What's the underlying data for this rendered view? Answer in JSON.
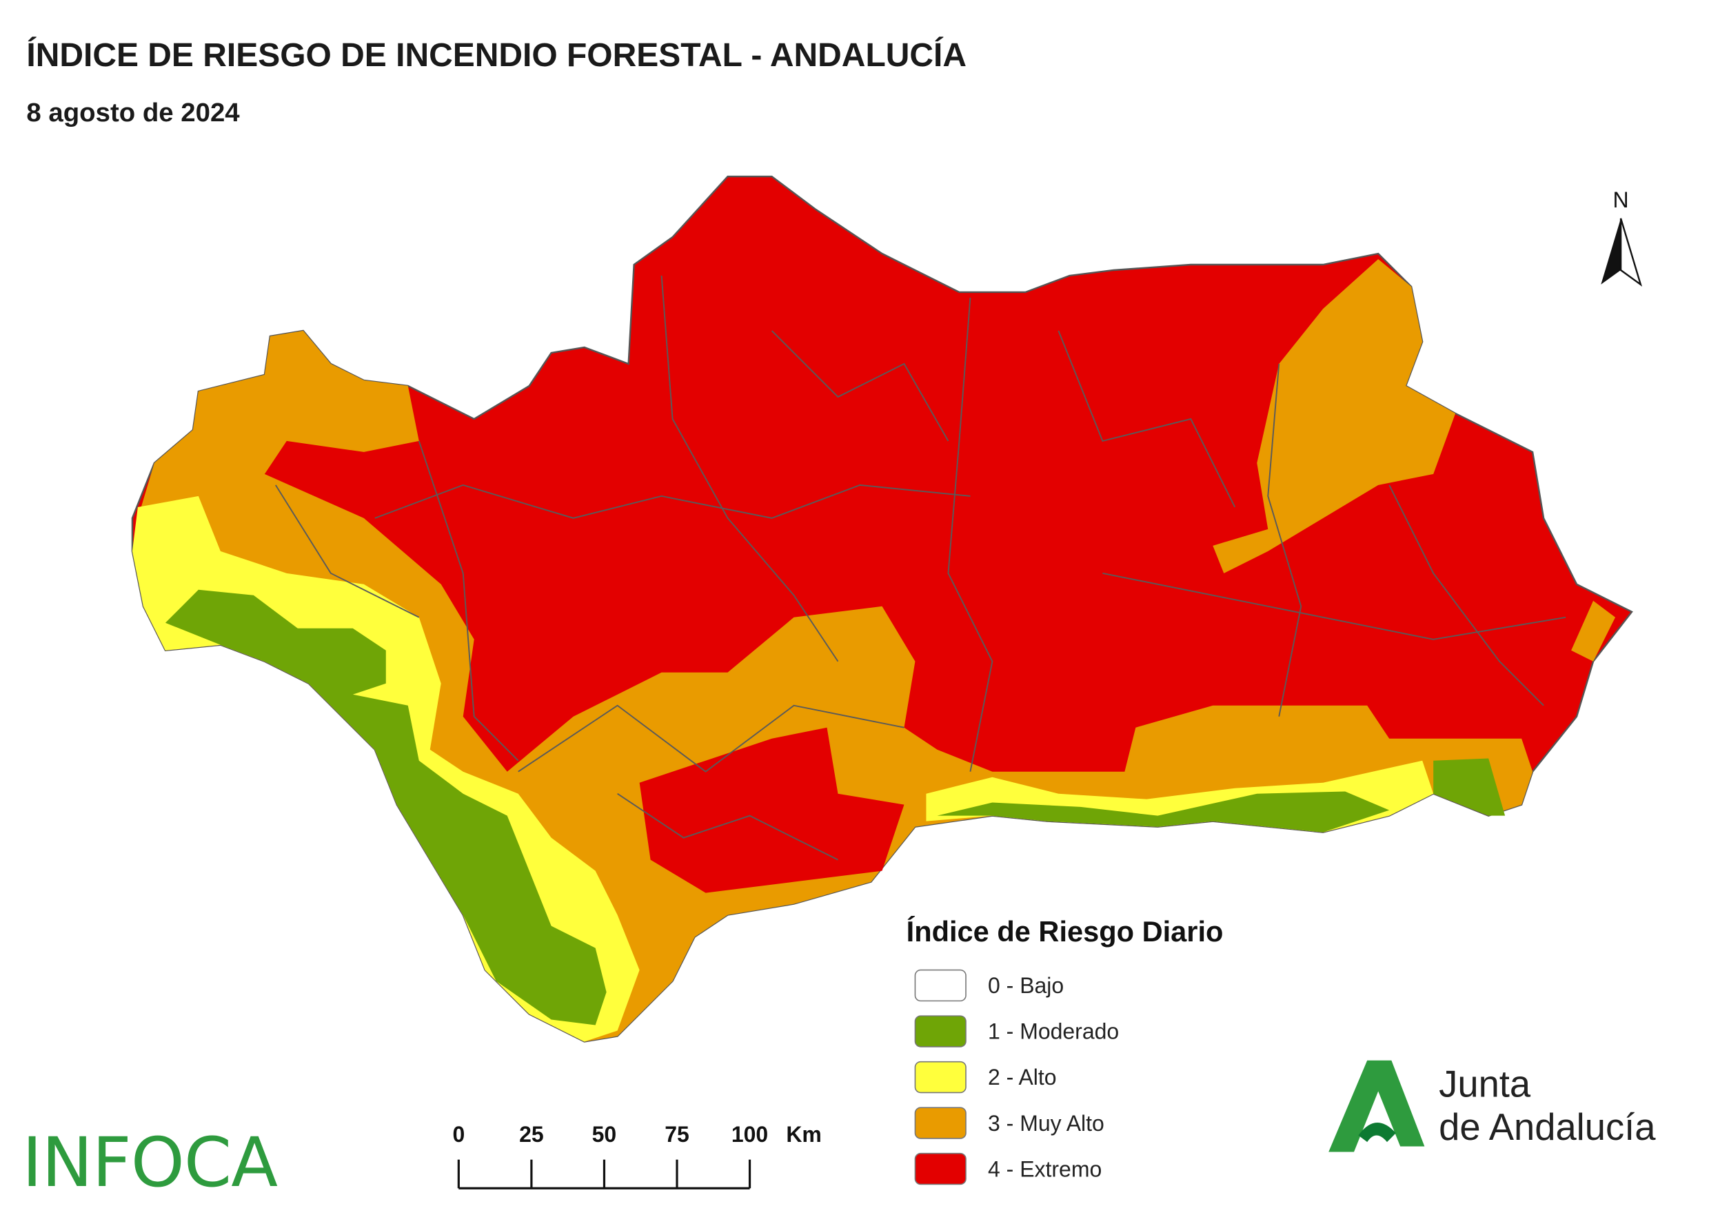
{
  "header": {
    "title": "ÍNDICE DE RIESGO DE INCENDIO FORESTAL - ANDALUCÍA",
    "subtitle": "8 agosto de 2024"
  },
  "north_arrow": "N",
  "legend": {
    "title": "Índice de Riesgo Diario",
    "items": [
      {
        "label": "0 - Bajo",
        "color": "#ffffff"
      },
      {
        "label": "1 - Moderado",
        "color": "#6fa506"
      },
      {
        "label": "2 - Alto",
        "color": "#ffff3c"
      },
      {
        "label": "3 - Muy Alto",
        "color": "#e99b00"
      },
      {
        "label": "4 - Extremo",
        "color": "#e30000"
      }
    ]
  },
  "scale_bar": {
    "ticks": [
      0,
      25,
      50,
      75,
      100
    ],
    "unit": "Km"
  },
  "logos": {
    "infoca": "INFOCA",
    "junta_line1": "Junta",
    "junta_line2": "de Andalucía"
  }
}
